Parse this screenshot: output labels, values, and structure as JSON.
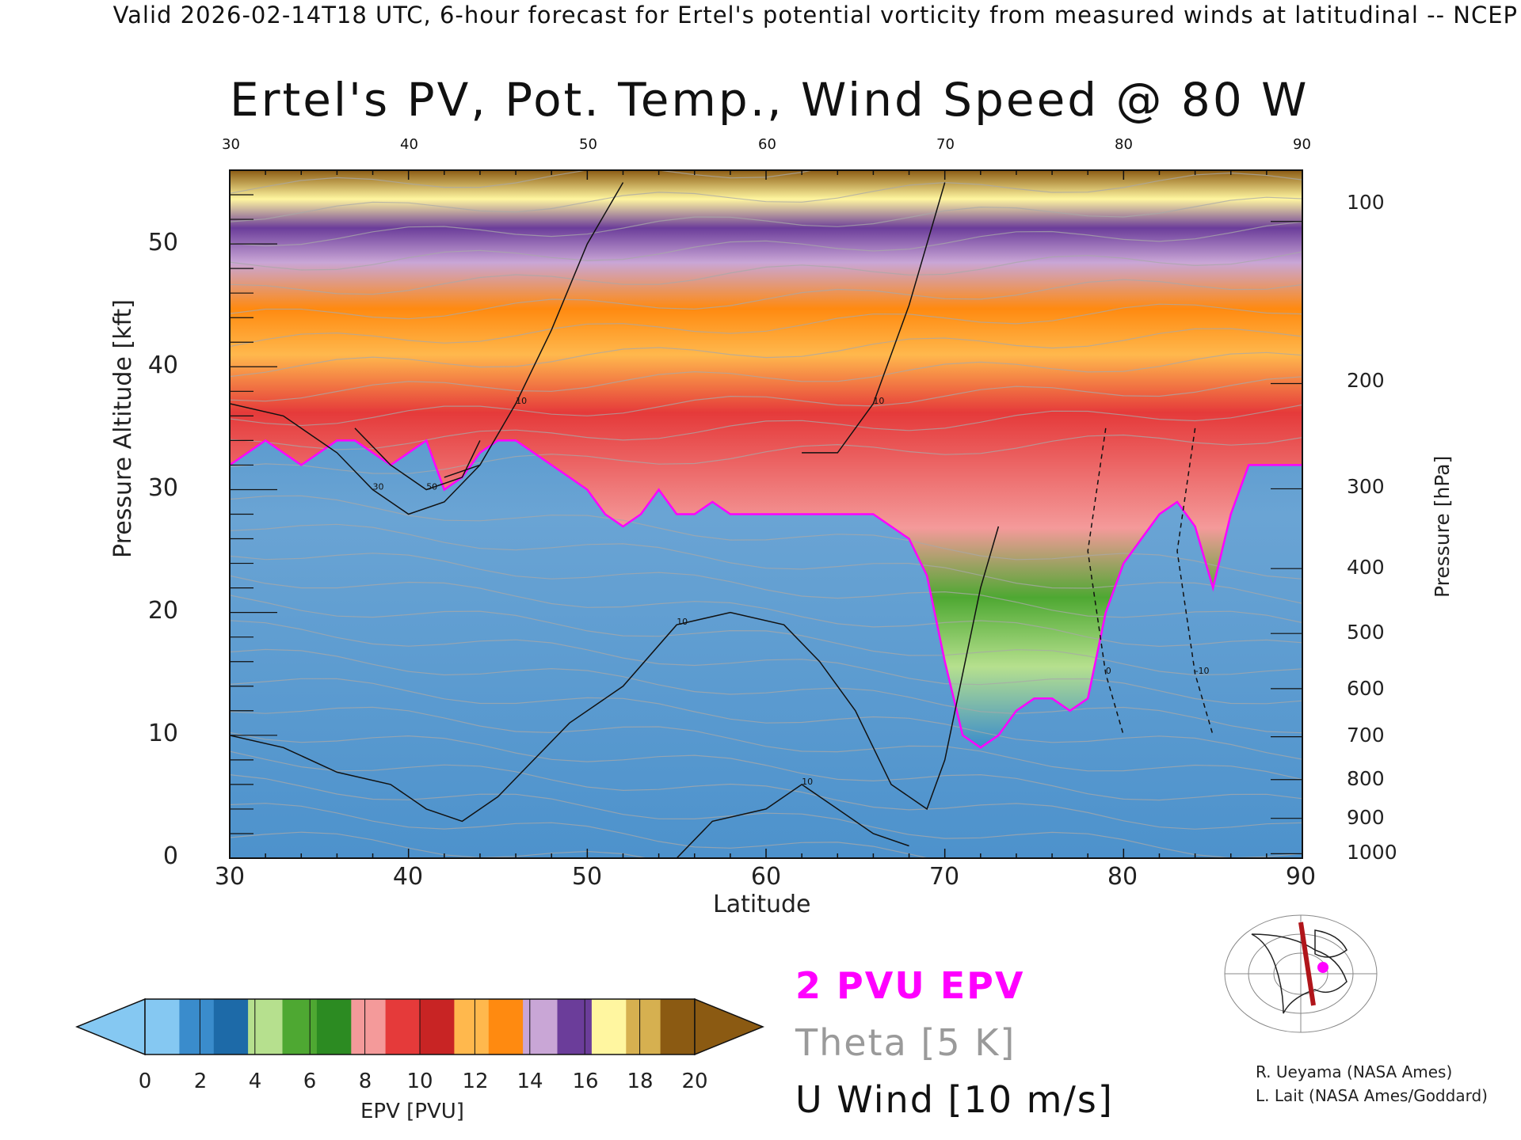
{
  "header": "Valid 2026-02-14T18 UTC, 6-hour forecast for Ertel's potential vorticity from measured winds at latitudinal -- NCEP",
  "title": "Ertel's PV, Pot. Temp., Wind Speed @ 80 W",
  "chart_data": {
    "type": "heatmap",
    "xlabel": "Latitude",
    "ylabel_left": "Pressure Altitude [kft]",
    "ylabel_right": "Pressure [hPa]",
    "xlim": [
      30,
      90
    ],
    "ylim": [
      0,
      56
    ],
    "x_ticks": [
      "30",
      "40",
      "50",
      "60",
      "70",
      "80",
      "90"
    ],
    "top_ticks": [
      "30",
      "40",
      "50",
      "60",
      "70",
      "80",
      "90"
    ],
    "y_ticks": [
      "0",
      "10",
      "20",
      "30",
      "40",
      "50"
    ],
    "right_ticks": [
      {
        "label": "100",
        "hpa": 100
      },
      {
        "label": "200",
        "hpa": 200
      },
      {
        "label": "300",
        "hpa": 300
      },
      {
        "label": "400",
        "hpa": 400
      },
      {
        "label": "500",
        "hpa": 500
      },
      {
        "label": "600",
        "hpa": 600
      },
      {
        "label": "700",
        "hpa": 700
      },
      {
        "label": "800",
        "hpa": 800
      },
      {
        "label": "900",
        "hpa": 900
      },
      {
        "label": "1000",
        "hpa": 1000
      }
    ],
    "tropopause_2pvu_kft": [
      [
        30,
        32
      ],
      [
        31,
        33
      ],
      [
        32,
        34
      ],
      [
        33,
        33
      ],
      [
        34,
        32
      ],
      [
        35,
        33
      ],
      [
        36,
        34
      ],
      [
        37,
        34
      ],
      [
        38,
        33
      ],
      [
        39,
        32
      ],
      [
        40,
        33
      ],
      [
        41,
        34
      ],
      [
        42,
        30
      ],
      [
        43,
        31
      ],
      [
        44,
        33
      ],
      [
        45,
        34
      ],
      [
        46,
        34
      ],
      [
        47,
        33
      ],
      [
        48,
        32
      ],
      [
        49,
        31
      ],
      [
        50,
        30
      ],
      [
        51,
        28
      ],
      [
        52,
        27
      ],
      [
        53,
        28
      ],
      [
        54,
        30
      ],
      [
        55,
        28
      ],
      [
        56,
        28
      ],
      [
        57,
        29
      ],
      [
        58,
        28
      ],
      [
        59,
        28
      ],
      [
        60,
        28
      ],
      [
        61,
        28
      ],
      [
        62,
        28
      ],
      [
        63,
        28
      ],
      [
        64,
        28
      ],
      [
        65,
        28
      ],
      [
        66,
        28
      ],
      [
        67,
        27
      ],
      [
        68,
        26
      ],
      [
        69,
        23
      ],
      [
        70,
        16
      ],
      [
        71,
        10
      ],
      [
        72,
        9
      ],
      [
        73,
        10
      ],
      [
        74,
        12
      ],
      [
        75,
        13
      ],
      [
        76,
        13
      ],
      [
        77,
        12
      ],
      [
        78,
        13
      ],
      [
        79,
        20
      ],
      [
        80,
        24
      ],
      [
        81,
        26
      ],
      [
        82,
        28
      ],
      [
        83,
        29
      ],
      [
        84,
        27
      ],
      [
        85,
        22
      ],
      [
        86,
        28
      ],
      [
        87,
        32
      ],
      [
        88,
        32
      ],
      [
        89,
        32
      ],
      [
        90,
        32
      ]
    ],
    "wind_contours_kft": [
      {
        "label": "10",
        "points": [
          [
            30,
            10
          ],
          [
            33,
            9
          ],
          [
            36,
            7
          ],
          [
            39,
            6
          ],
          [
            41,
            4
          ],
          [
            43,
            3
          ],
          [
            45,
            5
          ],
          [
            47,
            8
          ],
          [
            49,
            11
          ],
          [
            52,
            14
          ],
          [
            55,
            19
          ],
          [
            58,
            20
          ],
          [
            61,
            19
          ],
          [
            63,
            16
          ],
          [
            65,
            12
          ],
          [
            67,
            6
          ],
          [
            69,
            4
          ],
          [
            70,
            8
          ],
          [
            71,
            15
          ],
          [
            72,
            22
          ],
          [
            73,
            27
          ]
        ]
      },
      {
        "label": "10",
        "points": [
          [
            55,
            0
          ],
          [
            57,
            3
          ],
          [
            60,
            4
          ],
          [
            62,
            6
          ],
          [
            64,
            4
          ],
          [
            66,
            2
          ],
          [
            68,
            1
          ]
        ]
      },
      {
        "label": "30",
        "points": [
          [
            30,
            37
          ],
          [
            33,
            36
          ],
          [
            36,
            33
          ],
          [
            38,
            30
          ],
          [
            40,
            28
          ],
          [
            42,
            29
          ],
          [
            44,
            32
          ]
        ]
      },
      {
        "label": "50",
        "points": [
          [
            37,
            35
          ],
          [
            39,
            32
          ],
          [
            41,
            30
          ],
          [
            43,
            31
          ],
          [
            44,
            34
          ]
        ]
      },
      {
        "label": "10",
        "points": [
          [
            52,
            55
          ],
          [
            50,
            50
          ],
          [
            48,
            43
          ],
          [
            46,
            37
          ],
          [
            44,
            32
          ],
          [
            42,
            31
          ]
        ]
      },
      {
        "label": "10",
        "points": [
          [
            70,
            55
          ],
          [
            68,
            45
          ],
          [
            66,
            37
          ],
          [
            64,
            33
          ],
          [
            62,
            33
          ]
        ]
      },
      {
        "label": "0",
        "points": [
          [
            79,
            35
          ],
          [
            78,
            25
          ],
          [
            79,
            15
          ],
          [
            80,
            10
          ]
        ]
      },
      {
        "label": "-10",
        "points": [
          [
            84,
            35
          ],
          [
            83,
            25
          ],
          [
            84,
            15
          ],
          [
            85,
            10
          ]
        ]
      }
    ],
    "colorbar": {
      "label": "EPV [PVU]",
      "ticks": [
        "0",
        "2",
        "4",
        "6",
        "8",
        "10",
        "12",
        "14",
        "16",
        "18",
        "20"
      ],
      "colors": [
        "#85c8f2",
        "#3a8ccc",
        "#1d6aa8",
        "#b6e08e",
        "#4ea832",
        "#2c8b22",
        "#f49a9a",
        "#e53a3a",
        "#c82424",
        "#ffb84d",
        "#ff8a10",
        "#c9a6d6",
        "#6b3d9a",
        "#fff6a0",
        "#d6b050",
        "#8b5a12"
      ],
      "under_color": "#85c8f2",
      "over_color": "#8b5a12"
    },
    "legend": {
      "pv": "2 PVU EPV",
      "theta": "Theta [5 K]",
      "wind": "U Wind [10 m/s]",
      "pv_color": "#ff00ff",
      "theta_color": "#9a9a9a",
      "wind_color": "#111111"
    }
  },
  "credits": [
    "R. Ueyama (NASA Ames)",
    "L. Lait (NASA Ames/Goddard)"
  ]
}
